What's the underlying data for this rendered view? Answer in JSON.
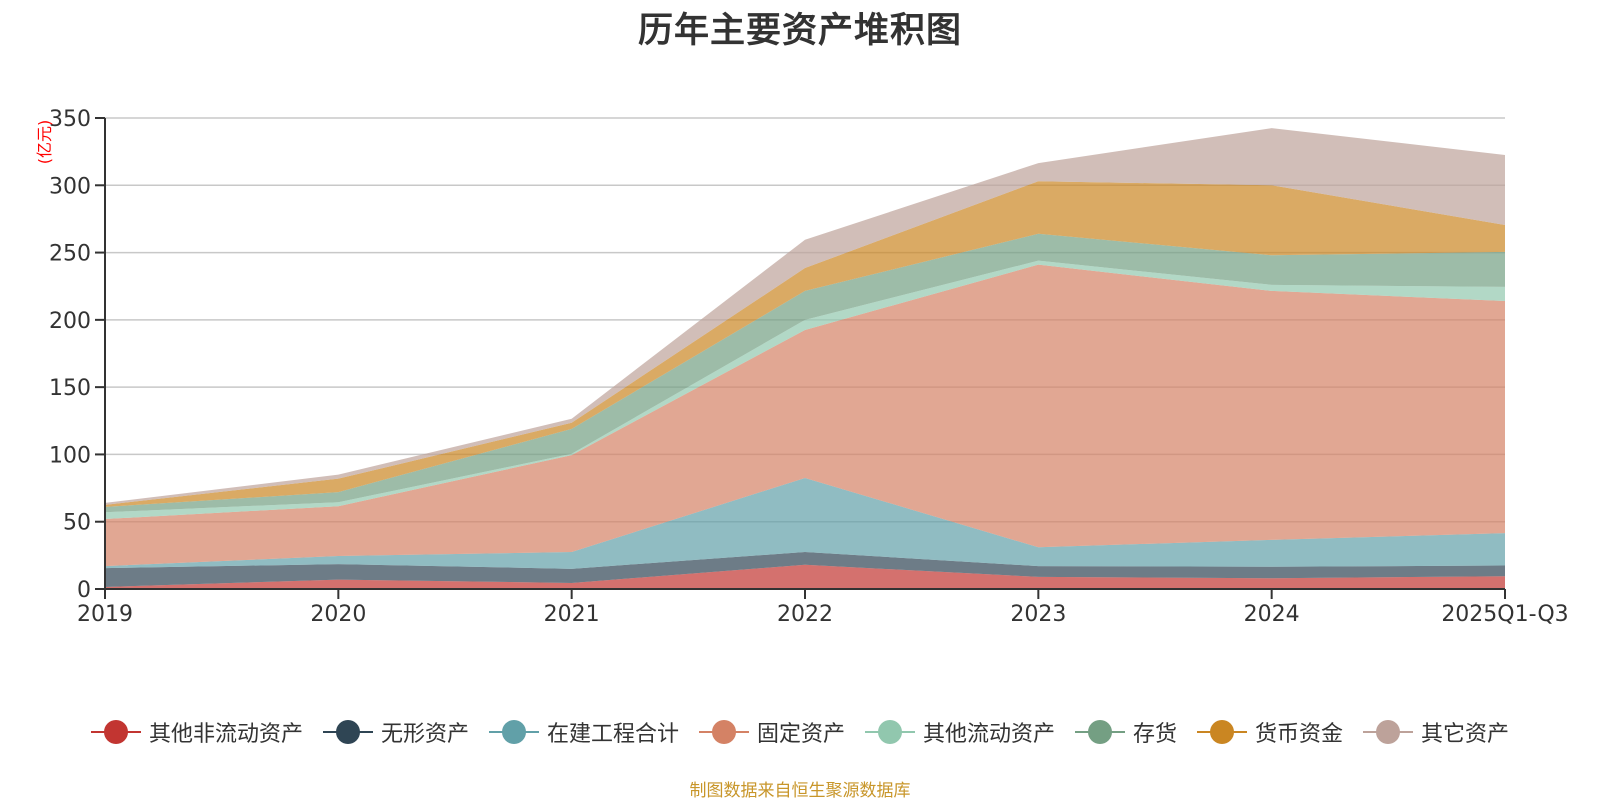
{
  "chart_data": {
    "type": "area",
    "stacked": true,
    "title": "历年主要资产堆积图",
    "xlabel": "",
    "ylabel": "(亿元)",
    "categories": [
      "2019",
      "2020",
      "2021",
      "2022",
      "2023",
      "2024",
      "2025Q1-Q3"
    ],
    "ylim": [
      0,
      350
    ],
    "yticks": [
      0,
      50,
      100,
      150,
      200,
      250,
      300,
      350
    ],
    "grid": true,
    "legend_position": "bottom",
    "series": [
      {
        "name": "其他非流动资产",
        "color": "#c23531",
        "values": [
          1.5,
          7,
          4.5,
          18,
          9,
          8,
          9.5
        ]
      },
      {
        "name": "无形资产",
        "color": "#2f4554",
        "values": [
          14,
          11.5,
          10.5,
          9.5,
          8,
          8.5,
          8
        ]
      },
      {
        "name": "在建工程合计",
        "color": "#61a0a8",
        "values": [
          1.5,
          6,
          12.5,
          55,
          14,
          20,
          24
        ]
      },
      {
        "name": "固定资产",
        "color": "#d48265",
        "values": [
          35,
          37,
          72,
          110,
          210,
          185,
          172.5
        ]
      },
      {
        "name": "其他流动资产",
        "color": "#91c7ae",
        "values": [
          5,
          3,
          1,
          7.5,
          3,
          4.5,
          10.5
        ]
      },
      {
        "name": "存货",
        "color": "#749f83",
        "values": [
          4,
          7.5,
          18.5,
          21.5,
          20,
          22,
          26
        ]
      },
      {
        "name": "货币资金",
        "color": "#ca8622",
        "values": [
          1.5,
          10,
          4.5,
          17,
          39,
          52,
          20
        ]
      },
      {
        "name": "其它资产",
        "color": "#bda29a",
        "values": [
          1.5,
          3,
          3,
          21,
          13.5,
          42.5,
          52
        ]
      }
    ]
  },
  "source_note": "制图数据来自恒生聚源数据库"
}
